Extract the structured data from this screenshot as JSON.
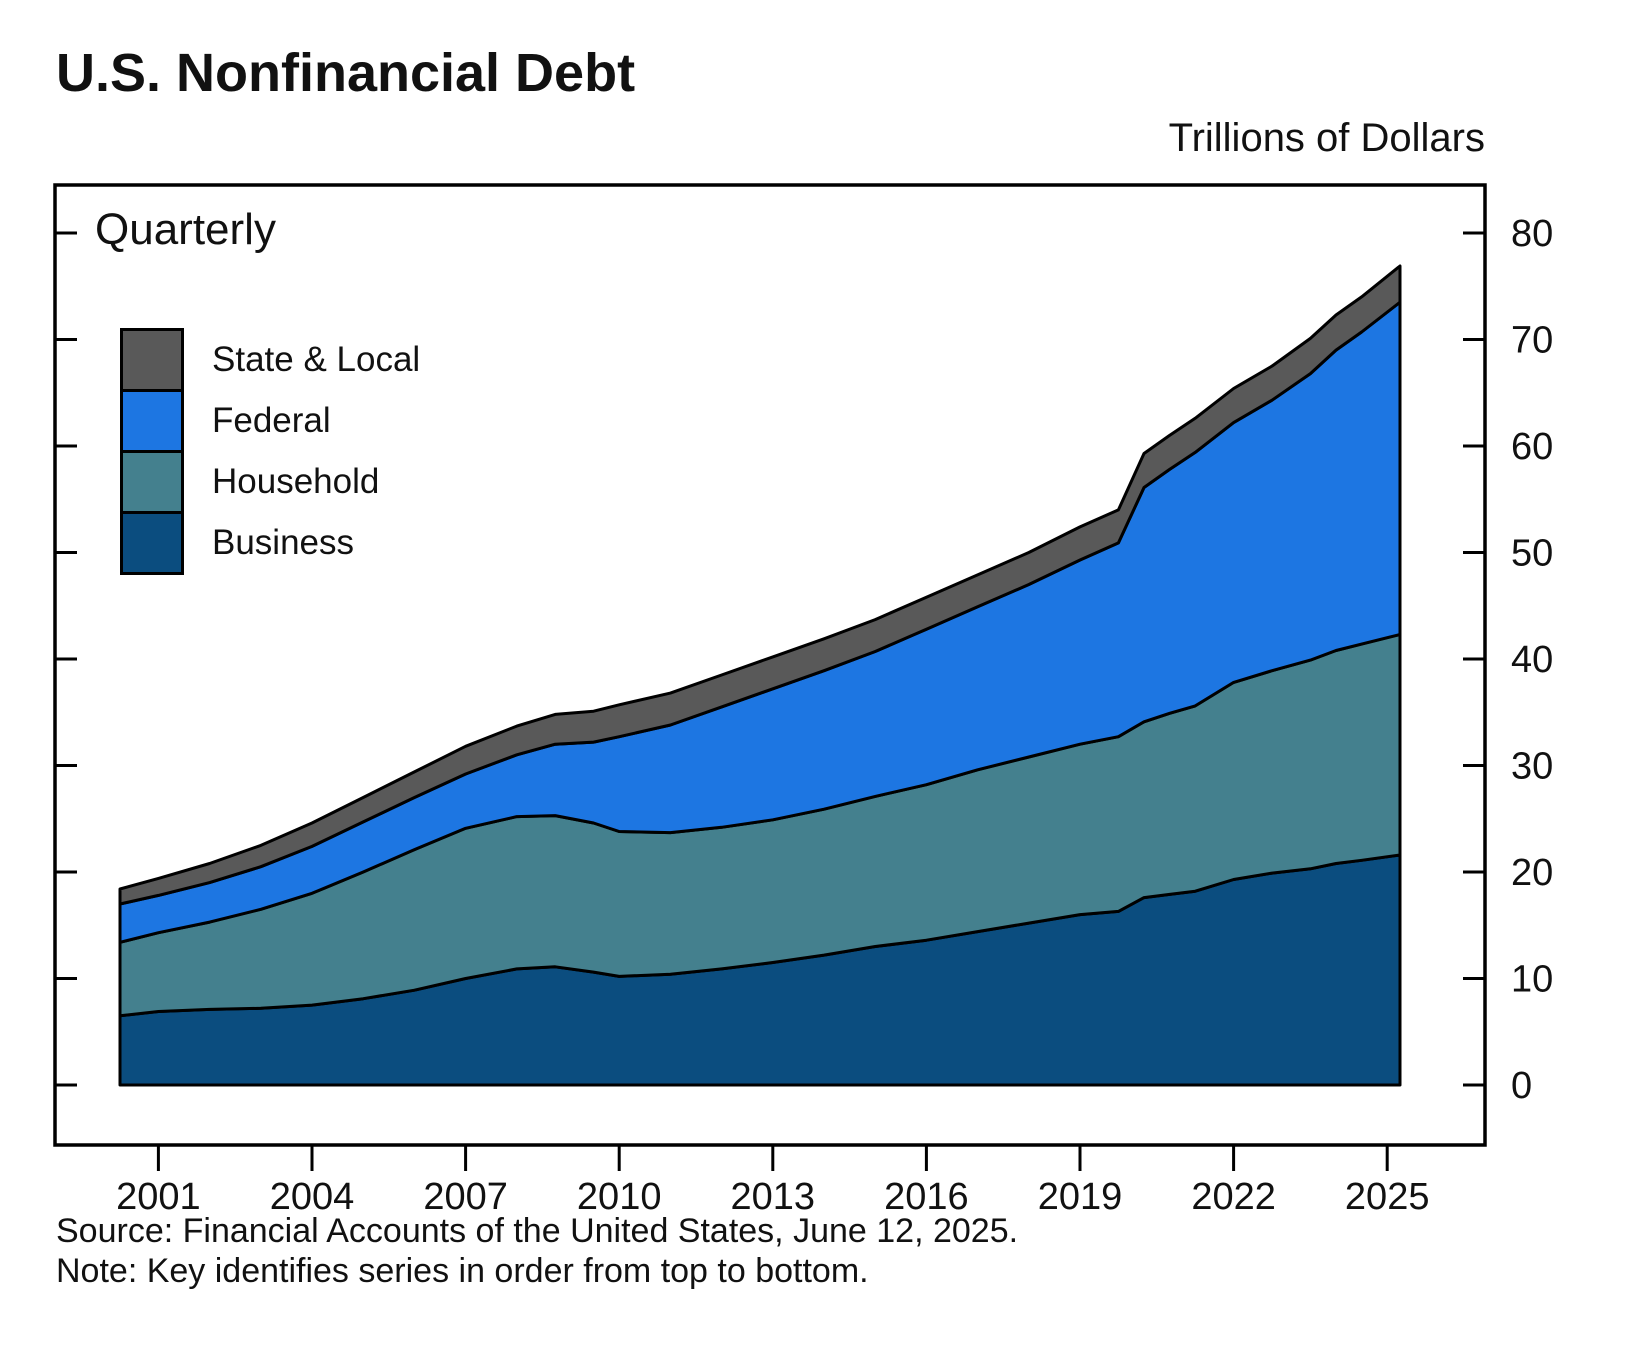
{
  "title": "U.S. Nonfinancial Debt",
  "units_label": "Trillions of Dollars",
  "frequency_label": "Quarterly",
  "source": "Source: Financial Accounts of the United States, June 12, 2025.",
  "note": "Note: Key identifies series in order from top to bottom.",
  "chart_data": {
    "type": "area",
    "stacked": true,
    "title": "U.S. Nonfinancial Debt",
    "xlabel": "",
    "ylabel": "Trillions of Dollars",
    "frequency": "Quarterly",
    "ylim": [
      0,
      80
    ],
    "yticks": [
      0,
      10,
      20,
      30,
      40,
      50,
      60,
      70,
      80
    ],
    "xticks": [
      2001,
      2004,
      2007,
      2010,
      2013,
      2016,
      2019,
      2022,
      2025
    ],
    "outline_color": "#000000",
    "grid": false,
    "legend_position": "upper-left-inside",
    "x": [
      2000.25,
      2001,
      2002,
      2003,
      2004,
      2005,
      2006,
      2007,
      2008,
      2008.75,
      2009.5,
      2010,
      2011,
      2012,
      2013,
      2014,
      2015,
      2016,
      2017,
      2018,
      2019,
      2019.75,
      2020.25,
      2020.75,
      2021.25,
      2022,
      2022.75,
      2023.5,
      2024,
      2024.5,
      2025.25
    ],
    "series": [
      {
        "name": "Business",
        "color": "#0b4d7f",
        "values": [
          6.5,
          6.9,
          7.1,
          7.2,
          7.5,
          8.1,
          8.9,
          10.0,
          10.9,
          11.1,
          10.6,
          10.2,
          10.4,
          10.9,
          11.5,
          12.2,
          13.0,
          13.6,
          14.4,
          15.2,
          16.0,
          16.3,
          17.6,
          17.9,
          18.2,
          19.3,
          19.9,
          20.3,
          20.8,
          21.1,
          21.6
        ]
      },
      {
        "name": "Household",
        "color": "#44808e",
        "values": [
          6.9,
          7.4,
          8.2,
          9.3,
          10.5,
          11.9,
          13.2,
          14.1,
          14.3,
          14.2,
          14.0,
          13.6,
          13.3,
          13.3,
          13.4,
          13.7,
          14.1,
          14.6,
          15.2,
          15.6,
          16.0,
          16.4,
          16.5,
          17.0,
          17.4,
          18.5,
          19.0,
          19.6,
          20.0,
          20.3,
          20.7
        ]
      },
      {
        "name": "Federal",
        "color": "#1d76e2",
        "values": [
          3.6,
          3.5,
          3.7,
          4.0,
          4.4,
          4.7,
          4.9,
          5.1,
          5.8,
          6.7,
          7.6,
          8.9,
          10.1,
          11.3,
          12.3,
          13.0,
          13.6,
          14.6,
          15.3,
          16.2,
          17.3,
          18.2,
          22.0,
          22.9,
          23.8,
          24.4,
          25.4,
          26.9,
          28.2,
          29.3,
          31.2
        ]
      },
      {
        "name": "State & Local",
        "color": "#595959",
        "values": [
          1.4,
          1.6,
          1.8,
          2.0,
          2.2,
          2.3,
          2.4,
          2.6,
          2.7,
          2.8,
          2.9,
          3.0,
          3.0,
          3.0,
          3.0,
          3.0,
          3.0,
          3.0,
          3.0,
          3.0,
          3.1,
          3.1,
          3.2,
          3.2,
          3.2,
          3.2,
          3.2,
          3.3,
          3.3,
          3.3,
          3.4
        ]
      }
    ],
    "legend": [
      {
        "label": "State & Local",
        "color": "#595959"
      },
      {
        "label": "Federal",
        "color": "#1d76e2"
      },
      {
        "label": "Household",
        "color": "#44808e"
      },
      {
        "label": "Business",
        "color": "#0b4d7f"
      }
    ]
  }
}
